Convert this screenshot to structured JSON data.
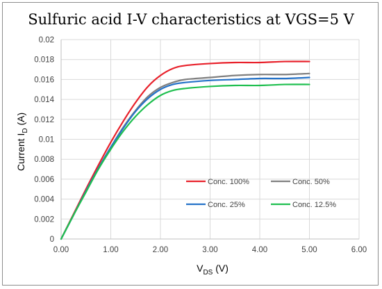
{
  "chart_data": {
    "type": "line",
    "title": "Sulfuric acid I-V characteristics at VGS=5 V",
    "xlabel": {
      "main": "V",
      "sub": "DS",
      "rest": " (V)"
    },
    "ylabel": {
      "main": "Current  I",
      "sub": "D",
      "rest": " (A)"
    },
    "xlim": [
      0,
      6
    ],
    "ylim": [
      0,
      0.02
    ],
    "x_ticks": [
      "0.00",
      "1.00",
      "2.00",
      "3.00",
      "4.00",
      "5.00",
      "6.00"
    ],
    "y_ticks": [
      "0",
      "0.002",
      "0.004",
      "0.006",
      "0.008",
      "0.01",
      "0.012",
      "0.014",
      "0.016",
      "0.018",
      "0.02"
    ],
    "grid": true,
    "legend_position": "center-right inside plot",
    "series": [
      {
        "name": "Conc. 100%",
        "color": "#e8202a",
        "points": [
          [
            0,
            0
          ],
          [
            0.25,
            0.0025
          ],
          [
            0.5,
            0.005
          ],
          [
            0.75,
            0.0074
          ],
          [
            1.0,
            0.0097
          ],
          [
            1.25,
            0.0118
          ],
          [
            1.5,
            0.0137
          ],
          [
            1.75,
            0.0153
          ],
          [
            2.0,
            0.0164
          ],
          [
            2.25,
            0.0171
          ],
          [
            2.5,
            0.0174
          ],
          [
            3.0,
            0.0176
          ],
          [
            3.5,
            0.0177
          ],
          [
            4.0,
            0.0177
          ],
          [
            4.5,
            0.0178
          ],
          [
            5.0,
            0.0178
          ]
        ]
      },
      {
        "name": "Conc. 50%",
        "color": "#7f7f7f",
        "points": [
          [
            0,
            0
          ],
          [
            0.25,
            0.0024
          ],
          [
            0.5,
            0.0048
          ],
          [
            0.75,
            0.0071
          ],
          [
            1.0,
            0.0092
          ],
          [
            1.25,
            0.0112
          ],
          [
            1.5,
            0.0129
          ],
          [
            1.75,
            0.0143
          ],
          [
            2.0,
            0.0152
          ],
          [
            2.25,
            0.0157
          ],
          [
            2.5,
            0.016
          ],
          [
            3.0,
            0.0162
          ],
          [
            3.5,
            0.0164
          ],
          [
            4.0,
            0.0165
          ],
          [
            4.5,
            0.0165
          ],
          [
            5.0,
            0.0166
          ]
        ]
      },
      {
        "name": "Conc. 25%",
        "color": "#2472c8",
        "points": [
          [
            0,
            0
          ],
          [
            0.25,
            0.0024
          ],
          [
            0.5,
            0.0048
          ],
          [
            0.75,
            0.0071
          ],
          [
            1.0,
            0.0092
          ],
          [
            1.25,
            0.0111
          ],
          [
            1.5,
            0.0128
          ],
          [
            1.75,
            0.0141
          ],
          [
            2.0,
            0.015
          ],
          [
            2.25,
            0.0155
          ],
          [
            2.5,
            0.0157
          ],
          [
            3.0,
            0.0159
          ],
          [
            3.5,
            0.016
          ],
          [
            4.0,
            0.0161
          ],
          [
            4.5,
            0.0161
          ],
          [
            5.0,
            0.0162
          ]
        ]
      },
      {
        "name": "Conc. 12.5%",
        "color": "#1fbf4f",
        "points": [
          [
            0,
            0
          ],
          [
            0.25,
            0.0024
          ],
          [
            0.5,
            0.0047
          ],
          [
            0.75,
            0.007
          ],
          [
            1.0,
            0.009
          ],
          [
            1.25,
            0.0108
          ],
          [
            1.5,
            0.0123
          ],
          [
            1.75,
            0.0135
          ],
          [
            2.0,
            0.0144
          ],
          [
            2.25,
            0.0149
          ],
          [
            2.5,
            0.0151
          ],
          [
            3.0,
            0.0153
          ],
          [
            3.5,
            0.0154
          ],
          [
            4.0,
            0.0154
          ],
          [
            4.5,
            0.0155
          ],
          [
            5.0,
            0.0155
          ]
        ]
      }
    ]
  }
}
